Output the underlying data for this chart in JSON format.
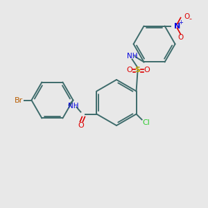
{
  "background_color": "#e8e8e8",
  "bond_color": "#3d6b6b",
  "colors": {
    "Br": "#b85c00",
    "Cl": "#32cd32",
    "S": "#c8a800",
    "N": "#0000dd",
    "O": "#dd0000",
    "C": "#3d6b6b",
    "H": "#0000dd"
  },
  "figsize": [
    3.0,
    3.0
  ],
  "dpi": 100
}
